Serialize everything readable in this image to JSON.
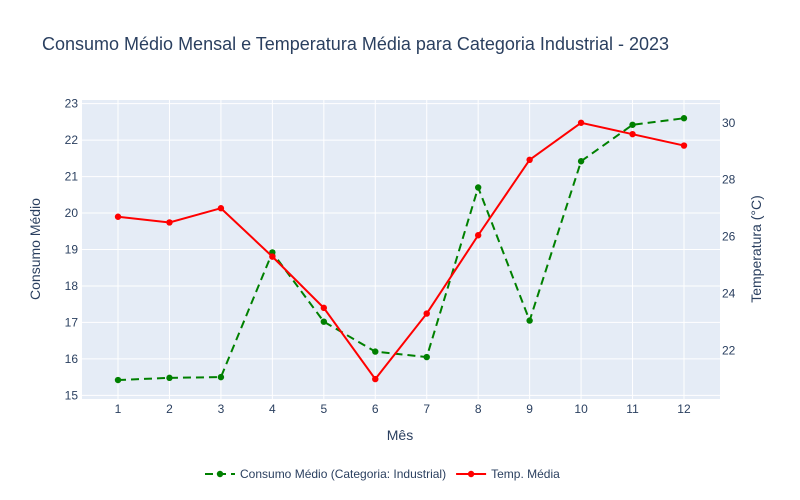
{
  "chart_data": {
    "type": "line",
    "title": "Consumo Médio Mensal e Temperatura Média para Categoria Industrial - 2023",
    "xlabel": "Mês",
    "ylabel_left": "Consumo Médio",
    "ylabel_right": "Temperatura (°C)",
    "x": [
      1,
      2,
      3,
      4,
      5,
      6,
      7,
      8,
      9,
      10,
      11,
      12
    ],
    "x_ticks": [
      "1",
      "2",
      "3",
      "4",
      "5",
      "6",
      "7",
      "8",
      "9",
      "10",
      "11",
      "12"
    ],
    "y_left_range": [
      14.9,
      23.1
    ],
    "y_left_ticks": [
      15,
      16,
      17,
      18,
      19,
      20,
      21,
      22,
      23
    ],
    "y_right_range": [
      20.3,
      30.8
    ],
    "y_right_ticks": [
      22,
      24,
      26,
      28,
      30
    ],
    "grid": true,
    "legend_position": "bottom",
    "series": [
      {
        "name": "Consumo Médio (Categoria: Industrial)",
        "axis": "left",
        "style": "dashed",
        "color": "#008000",
        "values": [
          15.42,
          15.48,
          15.5,
          18.92,
          17.02,
          16.2,
          16.05,
          20.7,
          17.05,
          21.42,
          22.42,
          22.6
        ]
      },
      {
        "name": "Temp. Média",
        "axis": "right",
        "style": "solid",
        "color": "#ff0000",
        "values": [
          26.7,
          26.5,
          27.0,
          25.3,
          23.5,
          21.0,
          23.3,
          26.05,
          28.7,
          30.0,
          29.6,
          29.2
        ]
      }
    ]
  },
  "colors": {
    "plot_bg": "#e5ecf6",
    "grid": "#ffffff",
    "text": "#2a3f5f"
  }
}
